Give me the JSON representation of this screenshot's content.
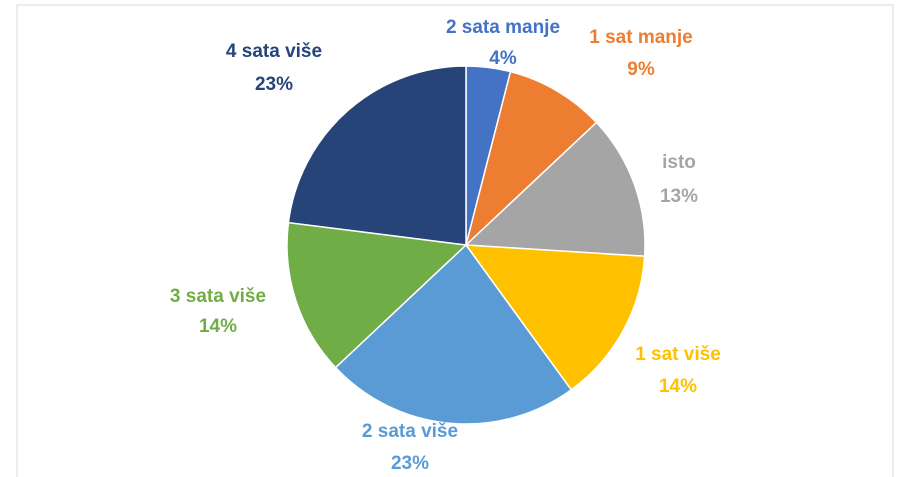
{
  "chart_data": {
    "type": "pie",
    "categories": [
      "2 sata manje",
      "1 sat manje",
      "isto",
      "1 sat više",
      "2 sata više",
      "3 sata više",
      "4 sata više"
    ],
    "values": [
      4,
      9,
      13,
      14,
      23,
      14,
      23
    ],
    "value_labels": [
      "4%",
      "9%",
      "13%",
      "14%",
      "23%",
      "14%",
      "23%"
    ],
    "colors": [
      "#4472c4",
      "#ed7d31",
      "#a5a5a5",
      "#ffc000",
      "#5b9bd5",
      "#70ad47",
      "#264478"
    ]
  }
}
